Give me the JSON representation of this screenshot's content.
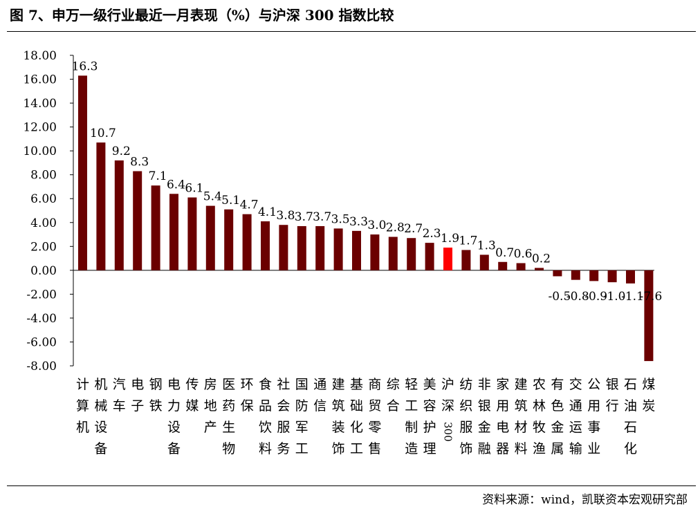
{
  "title": "图 7、申万一级行业最近一月表现（%）与沪深 300 指数比较",
  "source": "资料来源：wind，凯联资本宏观研究部",
  "colors": {
    "bar": "#6b0000",
    "highlight": "#ff0000",
    "axis": "#000000"
  },
  "chart_data": {
    "type": "bar",
    "title": "图 7、申万一级行业最近一月表现（%）与沪深 300 指数比较",
    "ylim": [
      -8,
      18
    ],
    "yticks": [
      "18.00",
      "16.00",
      "14.00",
      "12.00",
      "10.00",
      "8.00",
      "6.00",
      "4.00",
      "2.00",
      "0.00",
      "-2.00",
      "-4.00",
      "-6.00",
      "-8.00"
    ],
    "grid": false,
    "legend": "none",
    "highlight_category": "沪深300",
    "categories": [
      "计算机",
      "机械设备",
      "汽车",
      "电子",
      "钢铁",
      "电力设备",
      "传媒",
      "房地产",
      "医药生物",
      "环保",
      "食品饮料",
      "社会服务",
      "国防军工",
      "通信",
      "建筑装饰",
      "基础化工",
      "商贸零售",
      "综合",
      "轻工制造",
      "美容护理",
      "沪深300",
      "纺织服饰",
      "非银金融",
      "家用电器",
      "建筑材料",
      "农林牧渔",
      "有色金属",
      "交通运输",
      "公用事业",
      "银行",
      "石油石化",
      "煤炭"
    ],
    "values": [
      16.3,
      10.7,
      9.2,
      8.3,
      7.1,
      6.4,
      6.1,
      5.4,
      5.1,
      4.7,
      4.1,
      3.8,
      3.7,
      3.7,
      3.5,
      3.3,
      3.0,
      2.8,
      2.7,
      2.3,
      1.9,
      1.7,
      1.3,
      0.7,
      0.6,
      0.2,
      -0.5,
      -0.8,
      -0.9,
      -1.0,
      -1.1,
      -7.6
    ],
    "value_labels": [
      "16.3",
      "10.7",
      "9.2",
      "8.3",
      "7.1",
      "6.4",
      "6.1",
      "5.4",
      "5.1",
      "4.7",
      "4.1",
      "3.8",
      "3.7",
      "3.7",
      "3.5",
      "3.3",
      "3.0",
      "2.8",
      "2.7",
      "2.3",
      "1.9",
      "1.7",
      "1.3",
      "0.7",
      "0.6",
      "0.2",
      "-0.5",
      "-0.8",
      "-0.9",
      "-1.0",
      "-1.1",
      "-7.6"
    ]
  }
}
